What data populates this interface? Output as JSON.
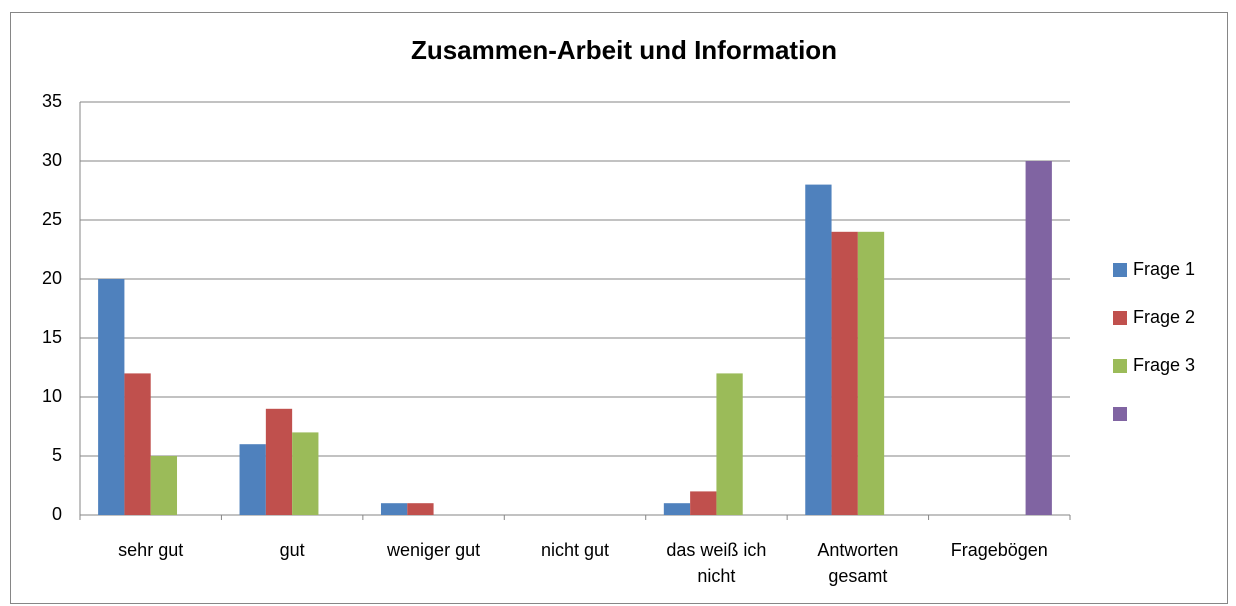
{
  "chart_data": {
    "type": "bar",
    "title": "Zusammen-Arbeit und Information",
    "categories": [
      "sehr gut",
      "gut",
      "weniger gut",
      "nicht gut",
      "das weiß ich nicht",
      "Antworten gesamt",
      "Fragebögen"
    ],
    "series": [
      {
        "name": "Frage 1",
        "color": "#4f81bd",
        "values": [
          20,
          6,
          1,
          0,
          1,
          28,
          0
        ]
      },
      {
        "name": "Frage 2",
        "color": "#c0504d",
        "values": [
          12,
          9,
          1,
          0,
          2,
          24,
          0
        ]
      },
      {
        "name": "Frage 3",
        "color": "#9bbb59",
        "values": [
          5,
          7,
          0,
          0,
          12,
          24,
          0
        ]
      },
      {
        "color": "#8064a2",
        "values": [
          0,
          0,
          0,
          0,
          0,
          0,
          30
        ]
      }
    ],
    "ylim": [
      0,
      35
    ],
    "yticks": [
      0,
      5,
      10,
      15,
      20,
      25,
      30,
      35
    ],
    "grid": true,
    "legend": "right"
  }
}
